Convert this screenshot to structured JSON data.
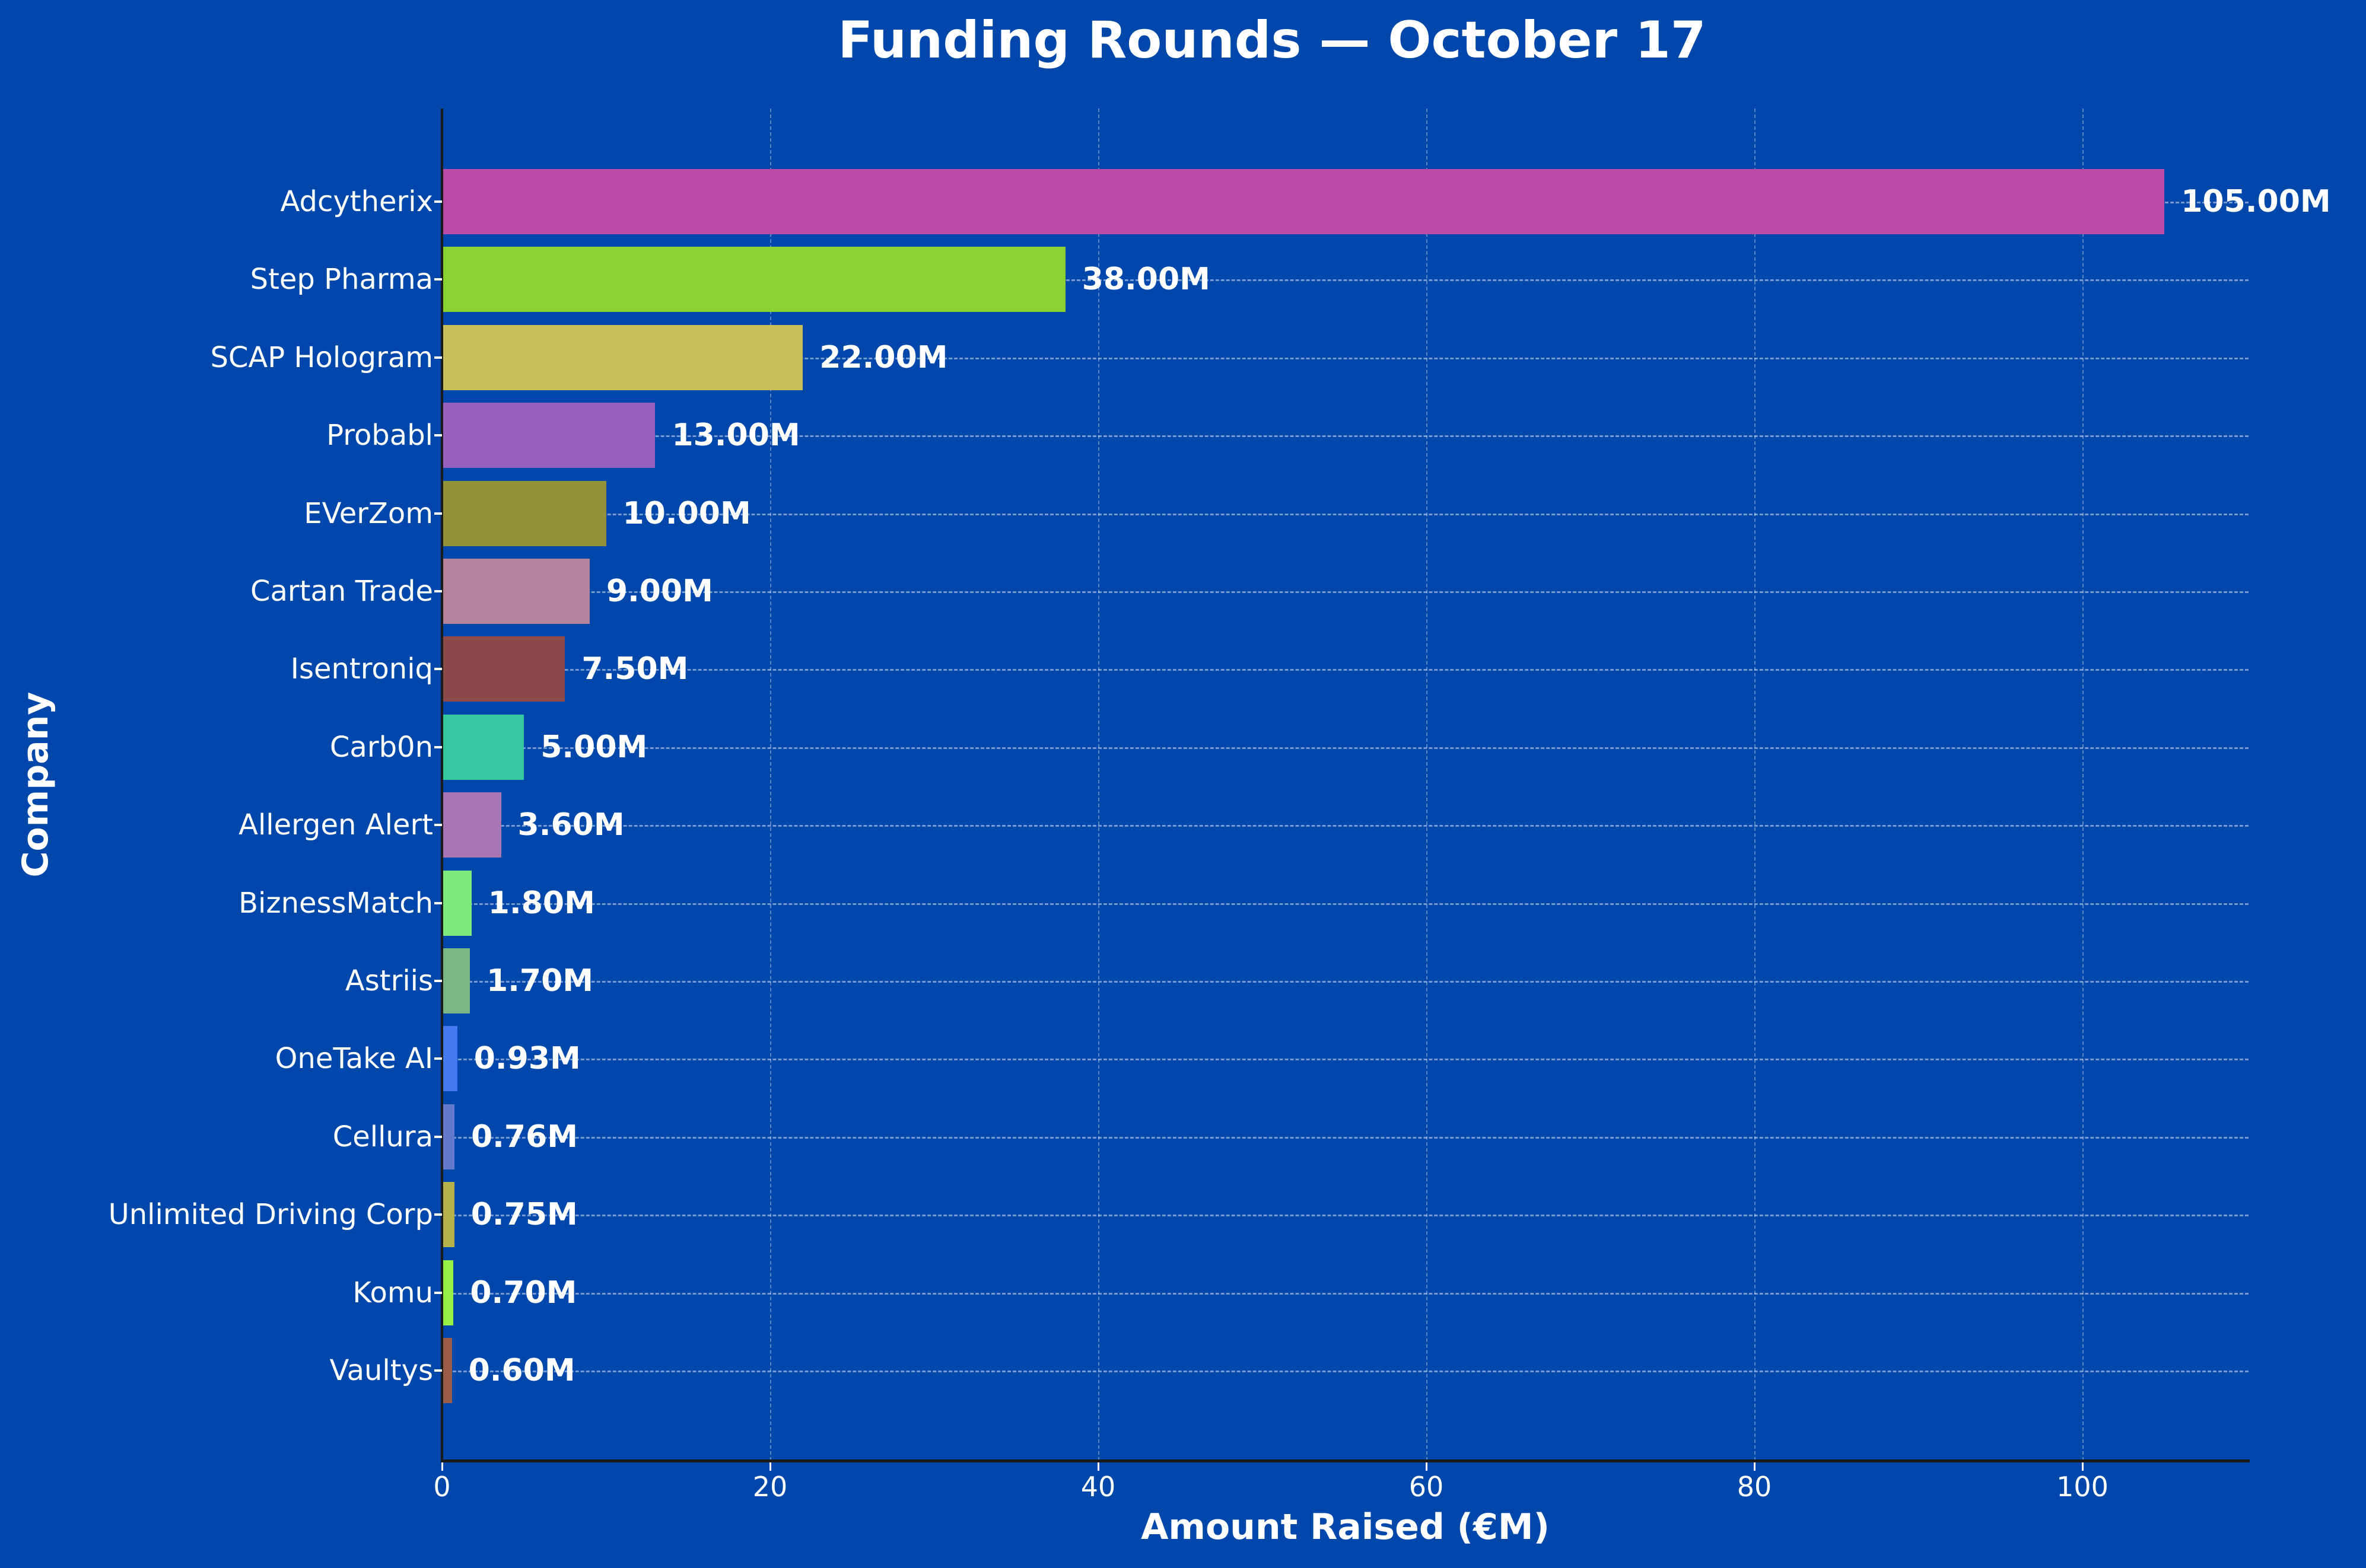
{
  "chart_data": {
    "type": "bar",
    "orientation": "horizontal",
    "title": "Funding Rounds — October 17",
    "xlabel": "Amount Raised (€M)",
    "ylabel": "Company",
    "xlim": [
      0,
      110
    ],
    "xticks": [
      0,
      20,
      40,
      60,
      80,
      100
    ],
    "grid": true,
    "categories": [
      "Adcytherix",
      "Step Pharma",
      "SCAP Hologram",
      "Probabl",
      "EVerZom",
      "Cartan Trade",
      "Isentroniq",
      "Carb0n",
      "Allergen Alert",
      "BiznessMatch",
      "Astriis",
      "OneTake AI",
      "Cellura",
      "Unlimited Driving Corp",
      "Komu",
      "Vaultys"
    ],
    "values": [
      105.0,
      38.0,
      22.0,
      13.0,
      10.0,
      9.0,
      7.5,
      5.0,
      3.6,
      1.8,
      1.7,
      0.93,
      0.76,
      0.75,
      0.7,
      0.6
    ],
    "labels": [
      "105.00M",
      "38.00M",
      "22.00M",
      "13.00M",
      "10.00M",
      "9.00M",
      "7.50M",
      "5.00M",
      "3.60M",
      "1.80M",
      "1.70M",
      "0.93M",
      "0.76M",
      "0.75M",
      "0.70M",
      "0.60M"
    ],
    "colors": [
      "#b94aa6",
      "#8bd132",
      "#c9c05a",
      "#9860bd",
      "#929238",
      "#b4849f",
      "#8a4a4a",
      "#36c9a1",
      "#a976b4",
      "#7de87b",
      "#79b886",
      "#4679f0",
      "#6478cc",
      "#b6b24a",
      "#96f046",
      "#9a5e48"
    ]
  },
  "background": "#0047ab"
}
